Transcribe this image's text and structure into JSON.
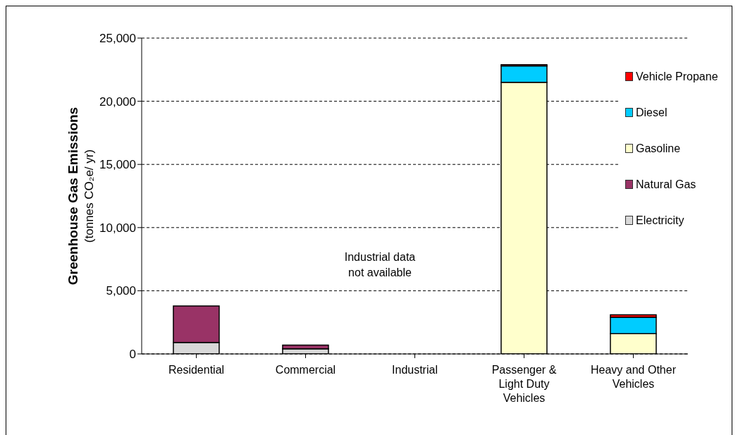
{
  "chart_data": {
    "type": "bar",
    "stacked": true,
    "ylabel": "Greenhouse Gas Emissions\n(tonnes CO₂e/ yr)",
    "categories": [
      "Residential",
      "Commercial",
      "Industrial",
      "Passenger & Light Duty Vehicles",
      "Heavy and Other Vehicles"
    ],
    "series": [
      {
        "name": "Electricity",
        "color": "#d9d9d9",
        "values": [
          900,
          400,
          null,
          null,
          null
        ]
      },
      {
        "name": "Natural Gas",
        "color": "#993366",
        "values": [
          2900,
          300,
          null,
          null,
          null
        ]
      },
      {
        "name": "Gasoline",
        "color": "#ffffcc",
        "values": [
          null,
          null,
          null,
          21500,
          1600
        ]
      },
      {
        "name": "Diesel",
        "color": "#00ccff",
        "values": [
          null,
          null,
          null,
          1300,
          1300
        ]
      },
      {
        "name": "Vehicle Propane",
        "color": "#ff0000",
        "values": [
          null,
          null,
          null,
          100,
          200
        ]
      }
    ],
    "ylim": [
      0,
      25000
    ],
    "yticks": [
      {
        "value": 0,
        "label": "0"
      },
      {
        "value": 5000,
        "label": "5,000"
      },
      {
        "value": 10000,
        "label": "10,000"
      },
      {
        "value": 15000,
        "label": "15,000"
      },
      {
        "value": 20000,
        "label": "20,000"
      },
      {
        "value": 25000,
        "label": "25,000"
      }
    ],
    "grid": "y",
    "legend": "top right",
    "annotations": [
      "Industrial data\nnot available"
    ]
  }
}
